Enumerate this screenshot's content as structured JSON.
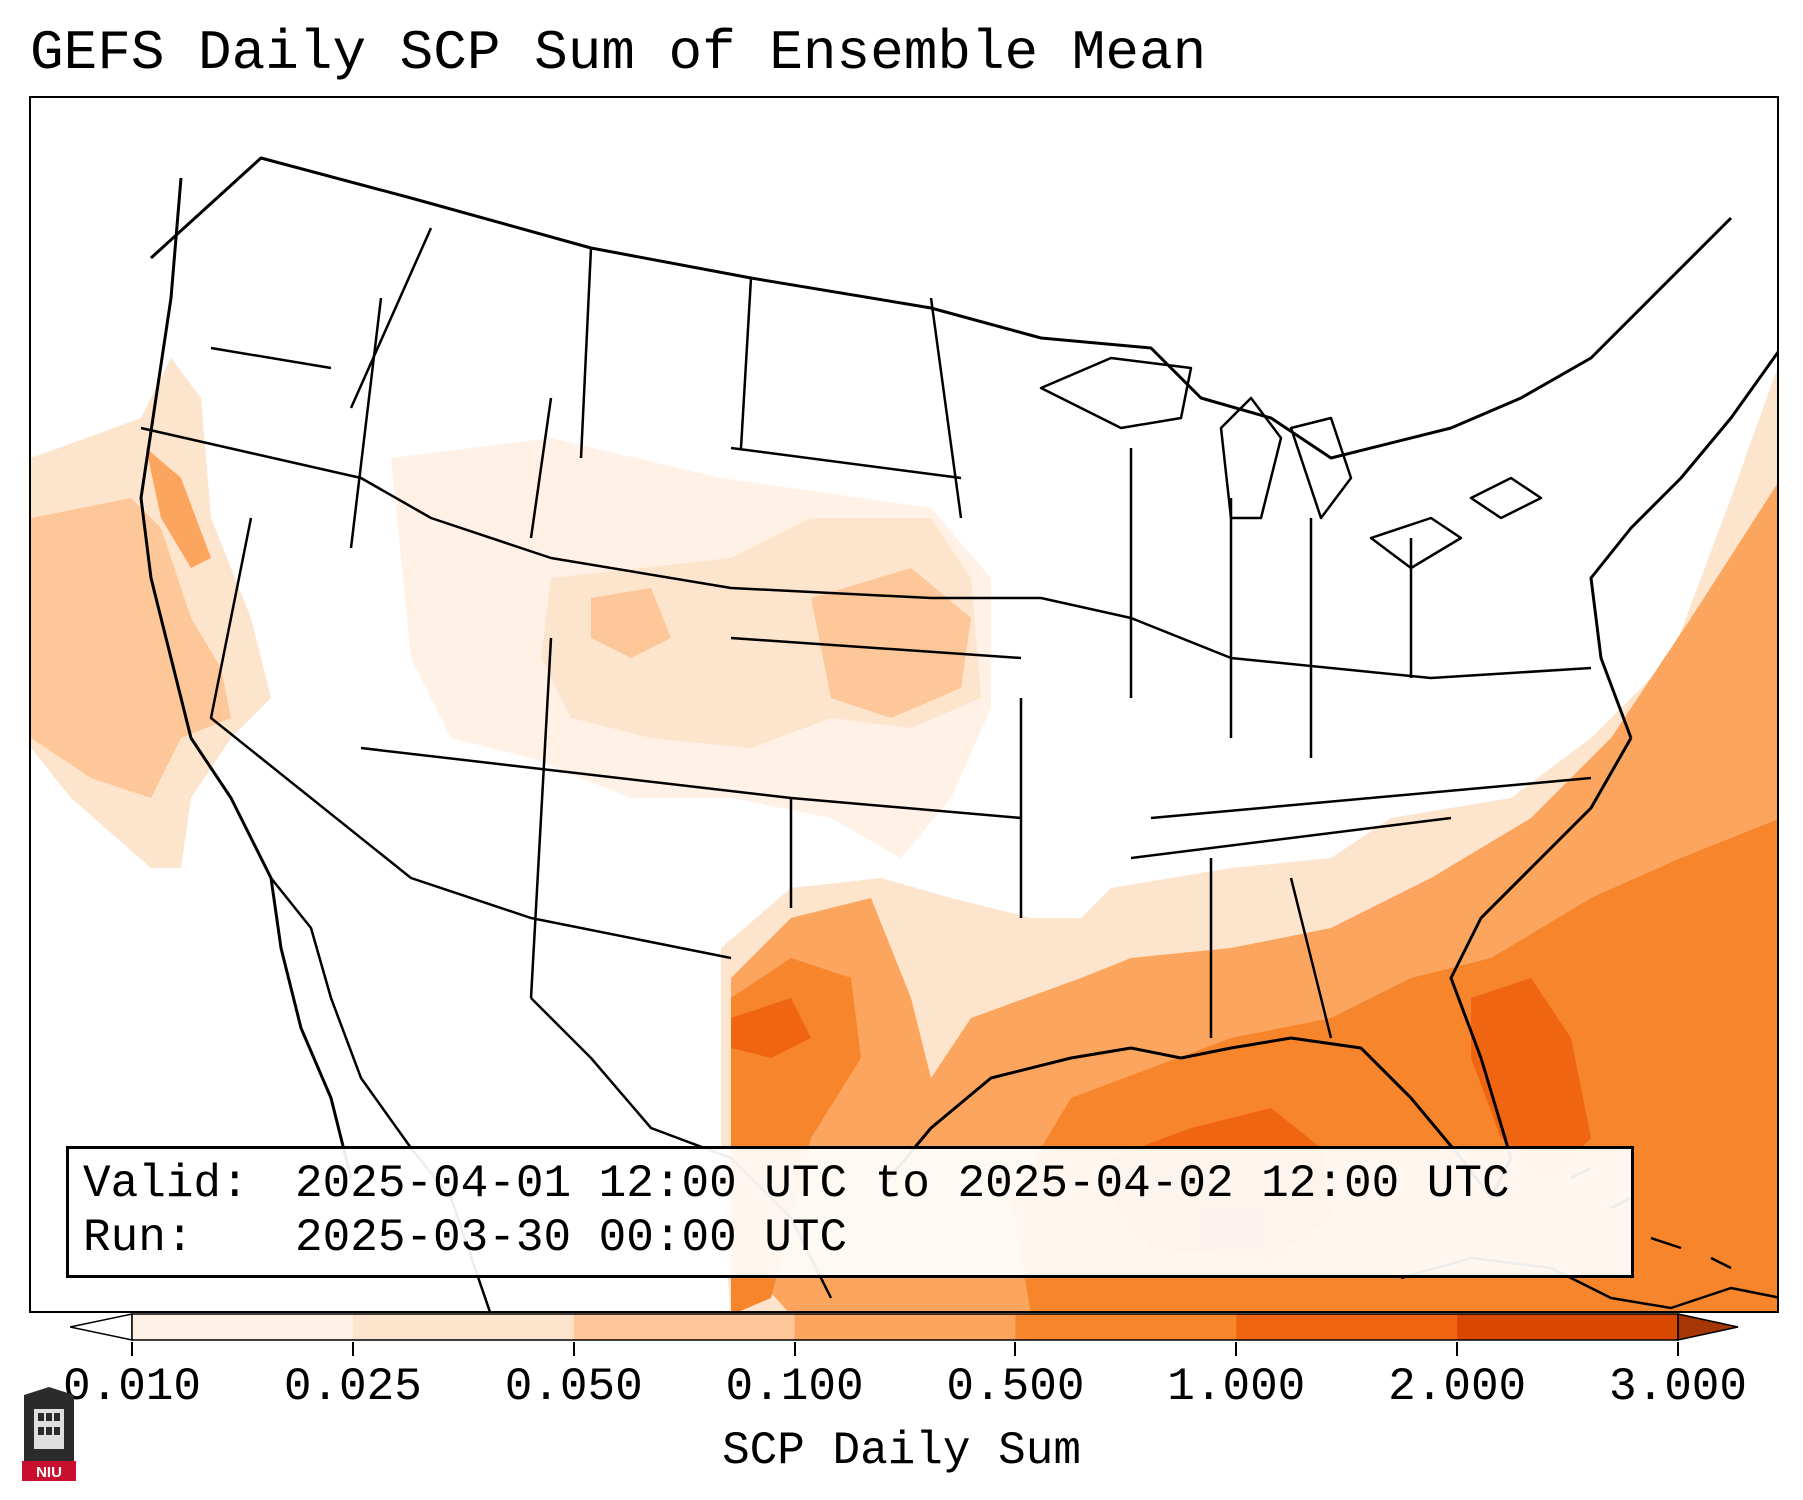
{
  "title": "GEFS Daily SCP Sum of Ensemble Mean",
  "info": {
    "valid_label": "Valid:",
    "valid_value": "2025-04-01 12:00 UTC to 2025-04-02 12:00 UTC",
    "run_label": "Run:",
    "run_value": "2025-03-30 00:00 UTC"
  },
  "colorbar": {
    "label": "SCP Daily Sum",
    "ticks": [
      "0.010",
      "0.025",
      "0.050",
      "0.100",
      "0.500",
      "1.000",
      "2.000",
      "3.000"
    ],
    "colors": [
      "#fff1e6",
      "#fde4cc",
      "#fdc799",
      "#fca55f",
      "#f7852c",
      "#ef6512",
      "#d94801",
      "#a63603"
    ]
  },
  "logo": {
    "text": "NIU"
  },
  "map": {
    "projection": "Lambert conformal",
    "region": "Contiguous United States",
    "scp_colors": {
      "faint": "#fff1e6",
      "light": "#fde4cc",
      "mid": "#fdc799",
      "orange": "#fca55f",
      "strong": "#f7852c",
      "dark": "#ef6512",
      "darkest": "#d94801"
    }
  }
}
